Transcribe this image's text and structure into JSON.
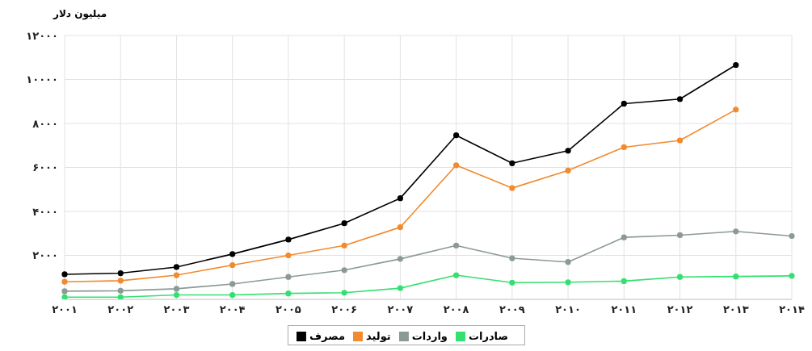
{
  "chart_data": {
    "type": "line",
    "ylabel": "میلیون دلار",
    "categories": [
      "۲۰۰۱",
      "۲۰۰۲",
      "۲۰۰۳",
      "۲۰۰۴",
      "۲۰۰۵",
      "۲۰۰۶",
      "۲۰۰۷",
      "۲۰۰۸",
      "۲۰۰۹",
      "۲۰۱۰",
      "۲۰۱۱",
      "۲۰۱۲",
      "۲۰۱۳",
      "۲۰۱۴"
    ],
    "series": [
      {
        "name": "مصرف",
        "color": "#000000",
        "values": [
          1140,
          1190,
          1470,
          2060,
          2720,
          3460,
          4600,
          7460,
          6190,
          6760,
          8900,
          9110,
          10660,
          null
        ]
      },
      {
        "name": "تولید",
        "color": "#f28a2e",
        "values": [
          800,
          850,
          1100,
          1560,
          2000,
          2450,
          3280,
          6100,
          5060,
          5860,
          6920,
          7230,
          8630,
          null
        ]
      },
      {
        "name": "واردات",
        "color": "#8c9a96",
        "values": [
          370,
          390,
          480,
          700,
          1020,
          1330,
          1840,
          2450,
          1870,
          1700,
          2820,
          2920,
          3090,
          2880
        ]
      },
      {
        "name": "صادرات",
        "color": "#33e070",
        "values": [
          100,
          100,
          200,
          200,
          270,
          300,
          510,
          1100,
          760,
          780,
          830,
          1020,
          1040,
          1070
        ]
      }
    ],
    "ylim": [
      0,
      12000
    ],
    "yticks": [
      {
        "value": 2000,
        "label": "۲۰۰۰"
      },
      {
        "value": 4000,
        "label": "۴۰۰۰"
      },
      {
        "value": 6000,
        "label": "۶۰۰۰"
      },
      {
        "value": 8000,
        "label": "۸۰۰۰"
      },
      {
        "value": 10000,
        "label": "۱۰۰۰۰"
      },
      {
        "value": 12000,
        "label": "۱۲۰۰۰"
      }
    ],
    "grid": true,
    "legend": "bottom",
    "marker": "circle",
    "line_style": "solid"
  }
}
